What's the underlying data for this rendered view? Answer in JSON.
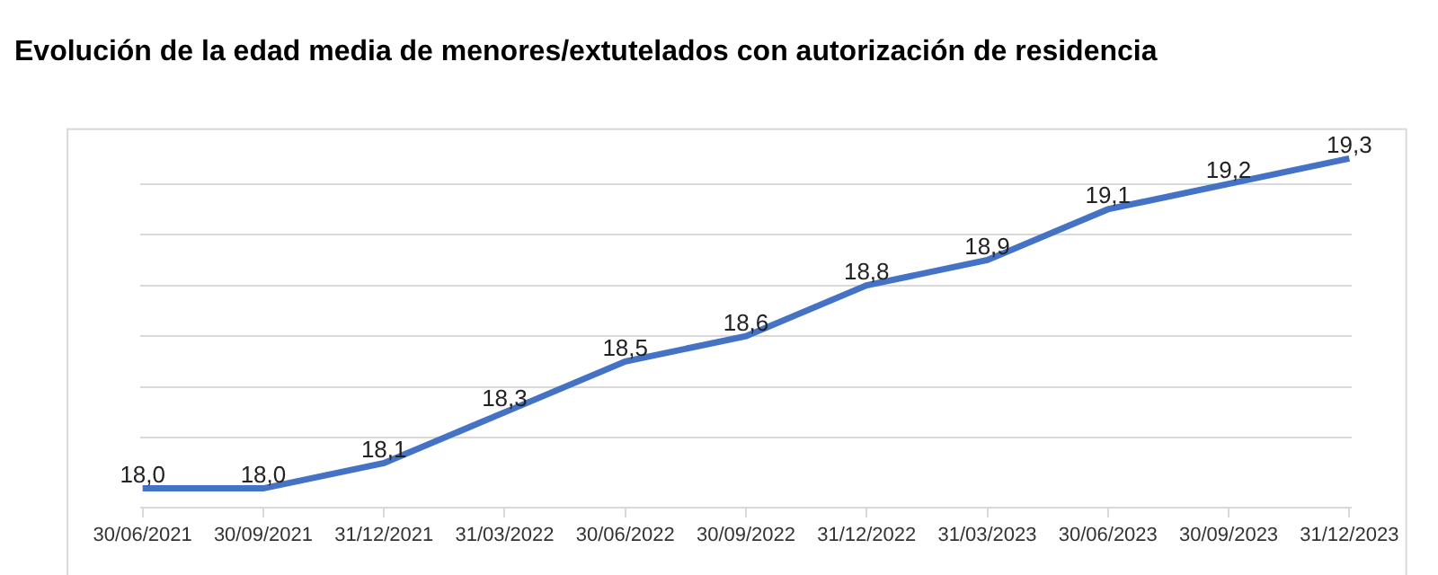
{
  "chart_data": {
    "type": "line",
    "title": "Evolución de la edad media de menores/extutelados con autorización de residencia",
    "categories": [
      "30/06/2021",
      "30/09/2021",
      "31/12/2021",
      "31/03/2022",
      "30/06/2022",
      "30/09/2022",
      "31/12/2022",
      "31/03/2023",
      "30/06/2023",
      "30/09/2023",
      "31/12/2023"
    ],
    "values": [
      18.0,
      18.0,
      18.1,
      18.3,
      18.5,
      18.6,
      18.8,
      18.9,
      19.1,
      19.2,
      19.3
    ],
    "value_labels": [
      "18,0",
      "18,0",
      "18,1",
      "18,3",
      "18,5",
      "18,6",
      "18,8",
      "18,9",
      "19,1",
      "19,2",
      "19,3"
    ],
    "color": "#4472c4",
    "yticks": [
      {
        "value": 18.2,
        "label": null
      },
      {
        "value": 18.4,
        "label": null
      },
      {
        "value": 18.6,
        "label": null
      },
      {
        "value": 18.8,
        "label": null
      },
      {
        "value": 19.0,
        "label": null
      },
      {
        "value": 19.2,
        "label": null
      }
    ],
    "grid": "y",
    "tick_labels": "x",
    "marker": "none",
    "line_style": "solid"
  }
}
